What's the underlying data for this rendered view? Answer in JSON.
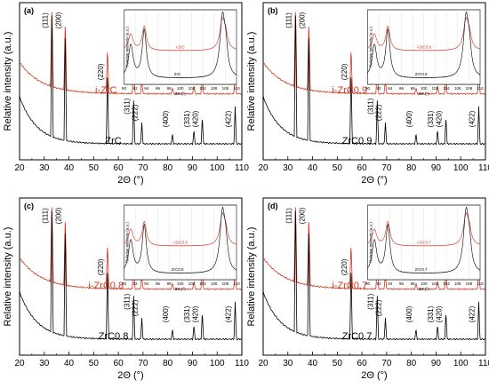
{
  "common": {
    "xlabel": "2Θ (°)",
    "ylabel": "Relative intensity (a.u.)",
    "xticks": [
      "20",
      "30",
      "40",
      "50",
      "60",
      "70",
      "80",
      "90",
      "100",
      "110"
    ],
    "inset_xlabel": "2Θ (°)",
    "inset_ylabel": "Relative intensity (a.u.)",
    "inset_xticks": [
      "90",
      "92",
      "94",
      "96",
      "98",
      "100",
      "102",
      "104",
      "106",
      "108",
      "110"
    ]
  },
  "chart_data": [
    {
      "type": "line",
      "panel": "(a)",
      "xlabel": "2Θ (°)",
      "ylabel": "Relative intensity (a.u.)",
      "xlim": [
        20,
        110
      ],
      "series": [
        {
          "name": "i-ZrC",
          "color": "#d0361e"
        },
        {
          "name": "ZrC",
          "color": "#000000"
        }
      ],
      "peaks": [
        {
          "label": "(111)",
          "x": 33.1
        },
        {
          "label": "(200)",
          "x": 38.5
        },
        {
          "label": "(220)",
          "x": 55.6
        },
        {
          "label": "(311)",
          "x": 66.2
        },
        {
          "label": "(222)",
          "x": 69.5
        },
        {
          "label": "(400)",
          "x": 81.9
        },
        {
          "label": "(331)",
          "x": 90.6
        },
        {
          "label": "(420)",
          "x": 94.0
        },
        {
          "label": "(422)",
          "x": 107.3
        }
      ],
      "inset": {
        "xlim": [
          90,
          110
        ],
        "labels": [
          "i-ZrC",
          "ZrC"
        ]
      }
    },
    {
      "type": "line",
      "panel": "(b)",
      "xlabel": "2Θ (°)",
      "ylabel": "Relative intensity (a.u.)",
      "xlim": [
        20,
        110
      ],
      "series": [
        {
          "name": "i-ZrC0.9",
          "color": "#d0361e"
        },
        {
          "name": "ZrC0.9",
          "color": "#000000"
        }
      ],
      "peaks": [
        {
          "label": "(111)",
          "x": 33.1
        },
        {
          "label": "(200)",
          "x": 38.5
        },
        {
          "label": "(220)",
          "x": 55.6
        },
        {
          "label": "(311)",
          "x": 66.2
        },
        {
          "label": "(222)",
          "x": 69.5
        },
        {
          "label": "(400)",
          "x": 81.9
        },
        {
          "label": "(331)",
          "x": 90.6
        },
        {
          "label": "(420)",
          "x": 94.0
        },
        {
          "label": "(422)",
          "x": 107.3
        }
      ],
      "inset": {
        "xlim": [
          90,
          110
        ],
        "labels": [
          "i-ZrC0.9",
          "ZrC0.9"
        ]
      }
    },
    {
      "type": "line",
      "panel": "(c)",
      "xlabel": "2Θ (°)",
      "ylabel": "Relative intensity (a.u.)",
      "xlim": [
        20,
        110
      ],
      "series": [
        {
          "name": "i-ZrC0.8",
          "color": "#d0361e"
        },
        {
          "name": "ZrC0.8",
          "color": "#000000"
        }
      ],
      "peaks": [
        {
          "label": "(111)",
          "x": 33.1
        },
        {
          "label": "(200)",
          "x": 38.5
        },
        {
          "label": "(220)",
          "x": 55.6
        },
        {
          "label": "(311)",
          "x": 66.2
        },
        {
          "label": "(222)",
          "x": 69.5
        },
        {
          "label": "(400)",
          "x": 81.9
        },
        {
          "label": "(331)",
          "x": 90.6
        },
        {
          "label": "(420)",
          "x": 94.0
        },
        {
          "label": "(422)",
          "x": 107.3
        }
      ],
      "inset": {
        "xlim": [
          90,
          110
        ],
        "labels": [
          "i-ZrC0.8",
          "ZrC0.8"
        ]
      }
    },
    {
      "type": "line",
      "panel": "(d)",
      "xlabel": "2Θ (°)",
      "ylabel": "Relative intensity (a.u.)",
      "xlim": [
        20,
        110
      ],
      "series": [
        {
          "name": "i-ZrC0.7",
          "color": "#d0361e"
        },
        {
          "name": "ZrC0.7",
          "color": "#000000"
        }
      ],
      "peaks": [
        {
          "label": "(111)",
          "x": 33.1
        },
        {
          "label": "(200)",
          "x": 38.5
        },
        {
          "label": "(220)",
          "x": 55.6
        },
        {
          "label": "(311)",
          "x": 66.2
        },
        {
          "label": "(222)",
          "x": 69.5
        },
        {
          "label": "(400)",
          "x": 81.9
        },
        {
          "label": "(331)",
          "x": 90.6
        },
        {
          "label": "(420)",
          "x": 94.0
        },
        {
          "label": "(422)",
          "x": 107.3
        }
      ],
      "inset": {
        "xlim": [
          90,
          110
        ],
        "labels": [
          "i-ZrC0.7",
          "ZrC0.7"
        ]
      }
    }
  ]
}
